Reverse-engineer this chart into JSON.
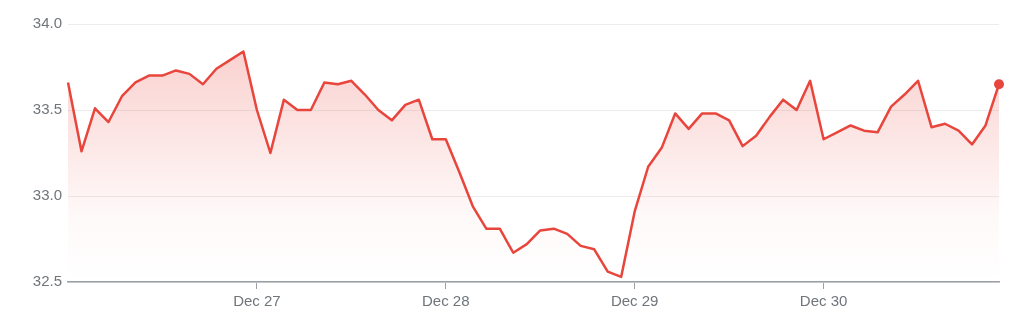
{
  "chart_data": {
    "type": "area",
    "categories": [
      null,
      null,
      null,
      null,
      null,
      null,
      null,
      null,
      null,
      null,
      null,
      null,
      null,
      null,
      "Dec 27",
      null,
      null,
      null,
      null,
      null,
      null,
      null,
      null,
      null,
      null,
      null,
      null,
      null,
      "Dec 28",
      null,
      null,
      null,
      null,
      null,
      null,
      null,
      null,
      null,
      null,
      null,
      null,
      null,
      "Dec 29",
      null,
      null,
      null,
      null,
      null,
      null,
      null,
      null,
      null,
      null,
      null,
      null,
      null,
      "Dec 30",
      null,
      null,
      null,
      null,
      null,
      null,
      null,
      null,
      null,
      null,
      null,
      null,
      null
    ],
    "series": [
      {
        "color": "#e8453c",
        "values": [
          33.66,
          33.26,
          33.51,
          33.43,
          33.58,
          33.66,
          33.7,
          33.7,
          33.73,
          33.71,
          33.65,
          33.74,
          33.79,
          33.84,
          33.5,
          33.25,
          33.56,
          33.5,
          33.5,
          33.66,
          33.65,
          33.67,
          33.59,
          33.5,
          33.44,
          33.53,
          33.56,
          33.33,
          33.33,
          33.14,
          32.94,
          32.81,
          32.81,
          32.67,
          32.72,
          32.8,
          32.81,
          32.78,
          32.71,
          32.69,
          32.56,
          32.53,
          32.91,
          33.17,
          33.28,
          33.48,
          33.39,
          33.48,
          33.48,
          33.44,
          33.29,
          33.35,
          33.46,
          33.56,
          33.5,
          33.67,
          33.33,
          33.37,
          33.41,
          33.38,
          33.37,
          33.52,
          33.59,
          33.67,
          33.4,
          33.42,
          33.38,
          33.3,
          33.41,
          33.65
        ]
      }
    ],
    "ylim": [
      32.5,
      34.0
    ],
    "yticks": [
      32.5,
      {
        "value": 33,
        "label": "33.0"
      },
      33.5,
      {
        "value": 34,
        "label": "34.0"
      }
    ],
    "grid": "y",
    "legend": false
  }
}
